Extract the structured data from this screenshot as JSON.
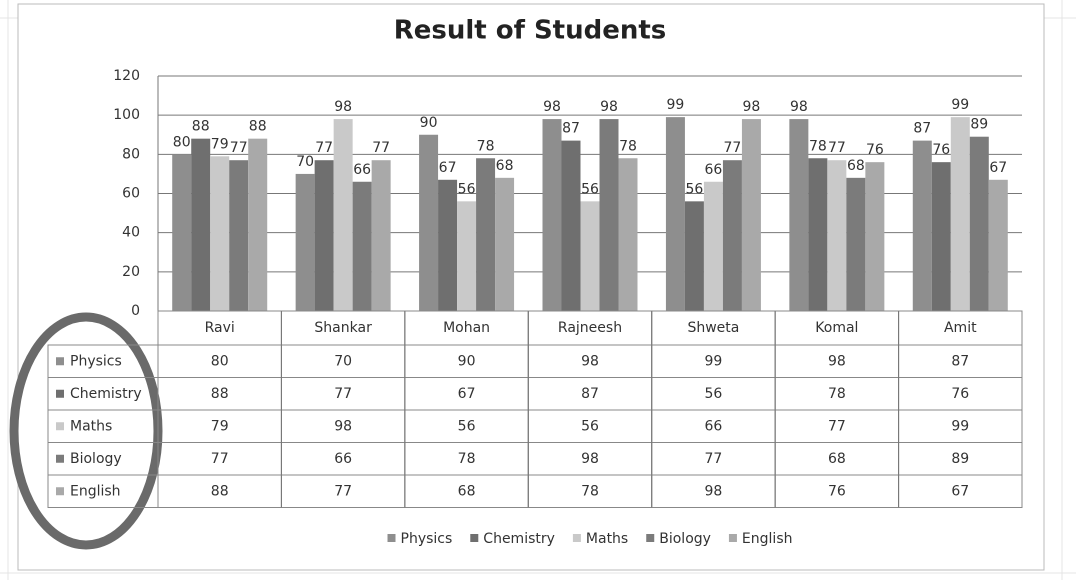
{
  "chart_data": {
    "type": "bar",
    "title": "Result of Students",
    "categories": [
      "Ravi",
      "Shankar",
      "Mohan",
      "Rajneesh",
      "Shweta",
      "Komal",
      "Amit"
    ],
    "series": [
      {
        "name": "Physics",
        "color": "#8e8e8e",
        "values": [
          80,
          70,
          90,
          98,
          99,
          98,
          87
        ]
      },
      {
        "name": "Chemistry",
        "color": "#6f6f6f",
        "values": [
          88,
          77,
          67,
          87,
          56,
          78,
          76
        ]
      },
      {
        "name": "Maths",
        "color": "#c9c9c9",
        "values": [
          79,
          98,
          56,
          56,
          66,
          77,
          99
        ]
      },
      {
        "name": "Biology",
        "color": "#7b7b7b",
        "values": [
          77,
          66,
          78,
          98,
          77,
          68,
          89
        ]
      },
      {
        "name": "English",
        "color": "#a9a9a9",
        "values": [
          88,
          77,
          68,
          78,
          98,
          76,
          67
        ]
      }
    ],
    "ylim": [
      0,
      120
    ],
    "yticks": [
      0,
      20,
      40,
      60,
      80,
      100,
      120
    ],
    "grid": true,
    "data_table": true,
    "legend": "bottom"
  }
}
